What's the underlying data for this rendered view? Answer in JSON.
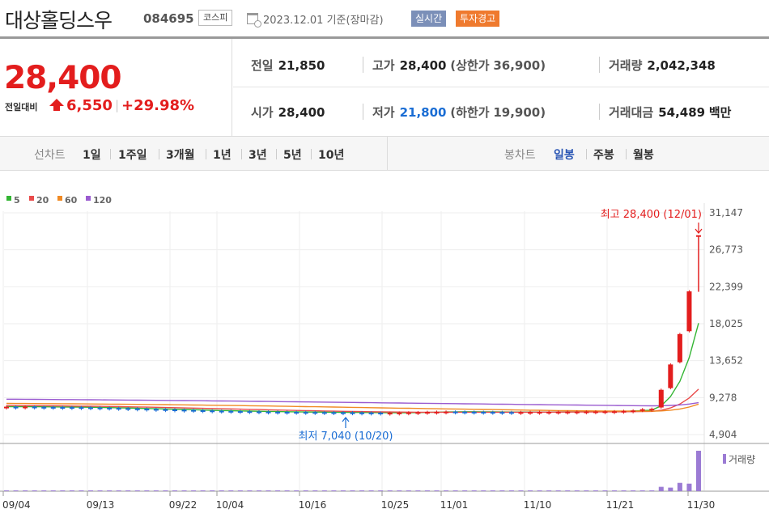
{
  "header": {
    "stock_name": "대상홀딩스우",
    "stock_code": "084695",
    "market": "코스피",
    "date": "2023.12.01",
    "basis": "기준(장마감)",
    "badge_realtime": "실시간",
    "badge_warning": "투자경고",
    "colors": {
      "realtime": "#7b8fb8",
      "warning": "#ef7a2e"
    }
  },
  "price": {
    "current": "28,400",
    "change_label": "전일대비",
    "change_amount": "6,550",
    "change_rate": "+29.98%",
    "direction": "up",
    "color": "#e31d1d"
  },
  "stats": {
    "prev_close": {
      "label": "전일",
      "value": "21,850"
    },
    "high": {
      "label": "고가",
      "value": "28,400",
      "limit_label": "(상한가",
      "limit_value": "36,900",
      "limit_close": ")"
    },
    "volume": {
      "label": "거래량",
      "value": "2,042,348"
    },
    "open": {
      "label": "시가",
      "value": "28,400"
    },
    "low": {
      "label": "저가",
      "value": "21,800",
      "limit_label": "(하한가",
      "limit_value": "19,900",
      "limit_close": ")"
    },
    "amount": {
      "label": "거래대금",
      "value": "54,489",
      "unit": "백만"
    }
  },
  "period_bar": {
    "line_title": "선차트",
    "line_items": [
      "1일",
      "1주일",
      "3개월",
      "1년",
      "3년",
      "5년",
      "10년"
    ],
    "candle_title": "봉차트",
    "candle_items": [
      "일봉",
      "주봉",
      "월봉"
    ],
    "active_candle": "일봉"
  },
  "chart_data": {
    "type": "candlestick",
    "title": "",
    "moving_averages": [
      {
        "name": "5",
        "color": "#33b533"
      },
      {
        "name": "20",
        "color": "#e94b4b"
      },
      {
        "name": "60",
        "color": "#f08a24"
      },
      {
        "name": "120",
        "color": "#9a5bd0"
      }
    ],
    "y_ticks": [
      "31,147",
      "26,773",
      "22,399",
      "18,025",
      "13,652",
      "9,278",
      "4,904"
    ],
    "y_tick_values": [
      31147,
      26773,
      22399,
      18025,
      13652,
      9278,
      4904
    ],
    "x_ticks": [
      "09/04",
      "09/13",
      "09/22",
      "10/04",
      "10/16",
      "10/25",
      "11/01",
      "11/10",
      "11/21",
      "11/30"
    ],
    "high_annotation": "최고 28,400 (12/01)",
    "low_annotation": "최저 7,040 (10/20)",
    "volume_label": "거래량",
    "close": [
      8200,
      8190,
      8210,
      8180,
      8170,
      8160,
      8150,
      8140,
      8120,
      8100,
      8080,
      8050,
      8020,
      7990,
      7960,
      7930,
      7900,
      7870,
      7840,
      7810,
      7780,
      7750,
      7720,
      7700,
      7680,
      7660,
      7640,
      7620,
      7600,
      7590,
      7580,
      7570,
      7560,
      7550,
      7540,
      7530,
      7520,
      7510,
      7500,
      7490,
      7470,
      7480,
      7500,
      7520,
      7550,
      7580,
      7600,
      7620,
      7610,
      7600,
      7590,
      7580,
      7570,
      7560,
      7550,
      7560,
      7570,
      7580,
      7590,
      7600,
      7610,
      7620,
      7630,
      7640,
      7650,
      7660,
      7700,
      7750,
      7900,
      7950,
      10200,
      13200,
      16800,
      21850,
      28400
    ],
    "volume": [
      2000,
      2200,
      1800,
      2100,
      1900,
      2300,
      2000,
      1700,
      2500,
      2200,
      2000,
      2100,
      1900,
      1800,
      2200,
      2400,
      2000,
      1900,
      2100,
      2000,
      2300,
      1800,
      2000,
      2100,
      1900,
      2200,
      2000,
      1800,
      2100,
      1900,
      2000,
      2200,
      2300,
      1900,
      2000,
      2100,
      1800,
      2000,
      2200,
      1900,
      2400,
      2100,
      2000,
      1900,
      2300,
      2200,
      2000,
      1800,
      2100,
      1900,
      2000,
      2200,
      1900,
      2000,
      2100,
      1800,
      2000,
      2200,
      1900,
      2000,
      2100,
      2200,
      2000,
      1900,
      2100,
      2000,
      9000,
      12000,
      14000,
      30000,
      220000,
      180000,
      420000,
      380000,
      2042348
    ]
  }
}
